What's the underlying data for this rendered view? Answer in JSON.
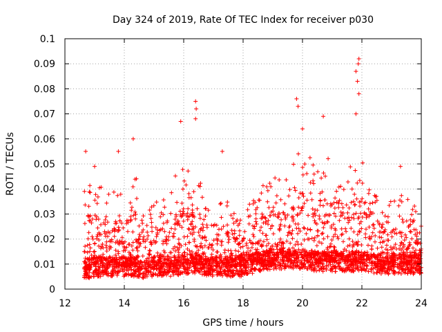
{
  "chart_data": {
    "type": "scatter",
    "title": "Day 324 of 2019, Rate Of TEC Index for receiver p030",
    "xlabel": "GPS time / hours",
    "ylabel": "ROTI / TECUs",
    "xlim": [
      12,
      24
    ],
    "ylim": [
      0,
      0.1
    ],
    "xticks": [
      "12",
      "14",
      "16",
      "18",
      "20",
      "22",
      "24"
    ],
    "yticks": [
      "0",
      "0.01",
      "0.02",
      "0.03",
      "0.04",
      "0.05",
      "0.06",
      "0.07",
      "0.08",
      "0.09",
      "0.1"
    ],
    "grid": true,
    "marker": "+",
    "color": "#ff0000",
    "x_start": 12.65,
    "x_end": 24.0,
    "notable_points": [
      {
        "x": 12.7,
        "y": 0.055
      },
      {
        "x": 13.0,
        "y": 0.049
      },
      {
        "x": 13.8,
        "y": 0.055
      },
      {
        "x": 14.3,
        "y": 0.06
      },
      {
        "x": 15.9,
        "y": 0.067
      },
      {
        "x": 16.4,
        "y": 0.075
      },
      {
        "x": 16.42,
        "y": 0.072
      },
      {
        "x": 16.4,
        "y": 0.068
      },
      {
        "x": 17.3,
        "y": 0.055
      },
      {
        "x": 19.8,
        "y": 0.076
      },
      {
        "x": 19.85,
        "y": 0.073
      },
      {
        "x": 20.0,
        "y": 0.064
      },
      {
        "x": 20.7,
        "y": 0.069
      },
      {
        "x": 21.8,
        "y": 0.087
      },
      {
        "x": 21.9,
        "y": 0.092
      },
      {
        "x": 21.88,
        "y": 0.09
      },
      {
        "x": 21.85,
        "y": 0.083
      },
      {
        "x": 21.9,
        "y": 0.078
      },
      {
        "x": 21.8,
        "y": 0.07
      },
      {
        "x": 23.3,
        "y": 0.049
      }
    ],
    "envelope": [
      {
        "x": 12.7,
        "baseline": 0.008,
        "max": 0.045
      },
      {
        "x": 13.0,
        "baseline": 0.009,
        "max": 0.042
      },
      {
        "x": 13.5,
        "baseline": 0.009,
        "max": 0.04
      },
      {
        "x": 14.0,
        "baseline": 0.009,
        "max": 0.04
      },
      {
        "x": 14.3,
        "baseline": 0.009,
        "max": 0.05
      },
      {
        "x": 14.7,
        "baseline": 0.008,
        "max": 0.03
      },
      {
        "x": 15.0,
        "baseline": 0.009,
        "max": 0.035
      },
      {
        "x": 15.5,
        "baseline": 0.009,
        "max": 0.04
      },
      {
        "x": 16.0,
        "baseline": 0.01,
        "max": 0.052
      },
      {
        "x": 16.5,
        "baseline": 0.01,
        "max": 0.045
      },
      {
        "x": 17.0,
        "baseline": 0.009,
        "max": 0.038
      },
      {
        "x": 17.5,
        "baseline": 0.009,
        "max": 0.035
      },
      {
        "x": 18.0,
        "baseline": 0.009,
        "max": 0.028
      },
      {
        "x": 18.5,
        "baseline": 0.011,
        "max": 0.042
      },
      {
        "x": 19.0,
        "baseline": 0.012,
        "max": 0.045
      },
      {
        "x": 19.5,
        "baseline": 0.012,
        "max": 0.045
      },
      {
        "x": 20.0,
        "baseline": 0.012,
        "max": 0.058
      },
      {
        "x": 20.5,
        "baseline": 0.011,
        "max": 0.052
      },
      {
        "x": 21.0,
        "baseline": 0.011,
        "max": 0.055
      },
      {
        "x": 21.5,
        "baseline": 0.011,
        "max": 0.05
      },
      {
        "x": 22.0,
        "baseline": 0.011,
        "max": 0.055
      },
      {
        "x": 22.5,
        "baseline": 0.01,
        "max": 0.04
      },
      {
        "x": 23.0,
        "baseline": 0.01,
        "max": 0.035
      },
      {
        "x": 23.5,
        "baseline": 0.01,
        "max": 0.04
      },
      {
        "x": 24.0,
        "baseline": 0.01,
        "max": 0.03
      }
    ],
    "points_per_hour": 300
  }
}
